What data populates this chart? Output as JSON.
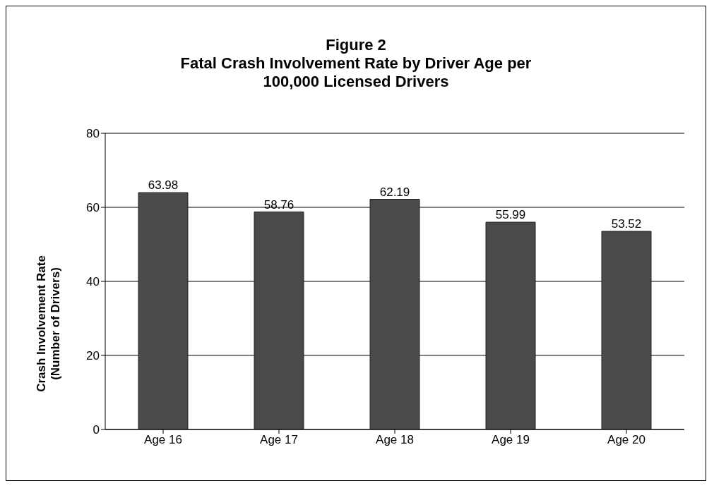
{
  "chart_data": {
    "type": "bar",
    "title": "Figure 2",
    "subtitle": "Fatal Crash Involvement Rate by Driver Age per 100,000 Licensed Drivers",
    "ylabel": "Crash Involvement Rate (Number of Drivers)",
    "categories": [
      "Age 16",
      "Age 17",
      "Age 18",
      "Age 19",
      "Age 20"
    ],
    "values": [
      63.98,
      58.76,
      62.19,
      55.99,
      53.52
    ],
    "color": "#4a4a4a",
    "ylim": [
      0,
      80
    ],
    "yticks": [
      0,
      20,
      40,
      60,
      80
    ],
    "grid": "y",
    "data_labels": true
  }
}
